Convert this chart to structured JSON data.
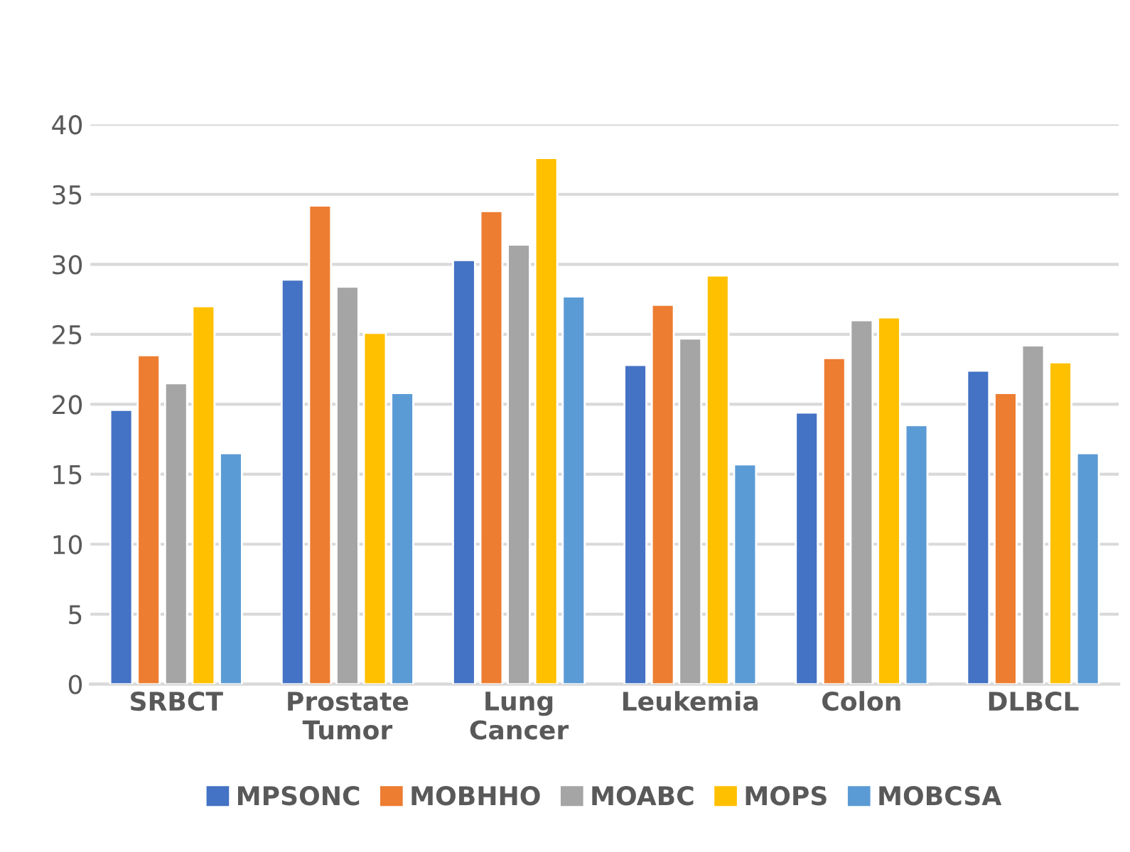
{
  "chart_data": {
    "type": "bar",
    "categories": [
      "SRBCT",
      "Prostate\nTumor",
      "Lung\nCancer",
      "Leukemia",
      "Colon",
      "DLBCL"
    ],
    "series": [
      {
        "name": "MPSONC",
        "color": "#4472c4",
        "values": [
          19.6,
          28.9,
          30.3,
          22.8,
          19.4,
          22.4
        ]
      },
      {
        "name": "MOBHHO",
        "color": "#ed7d31",
        "values": [
          23.5,
          34.2,
          33.8,
          27.1,
          23.3,
          20.8
        ]
      },
      {
        "name": "MOABC",
        "color": "#a5a5a5",
        "values": [
          21.5,
          28.4,
          31.4,
          24.7,
          26.0,
          24.2
        ]
      },
      {
        "name": "MOPS",
        "color": "#ffc000",
        "values": [
          27.0,
          25.1,
          37.6,
          29.2,
          26.2,
          23.0
        ]
      },
      {
        "name": "MOBCSA",
        "color": "#5b9bd5",
        "values": [
          16.5,
          20.8,
          27.7,
          15.7,
          18.5,
          16.5
        ]
      }
    ],
    "ylim": [
      0,
      40
    ],
    "yticks": [
      0,
      5,
      10,
      15,
      20,
      25,
      30,
      35,
      40
    ],
    "grid": "y",
    "legend": "bottom"
  }
}
